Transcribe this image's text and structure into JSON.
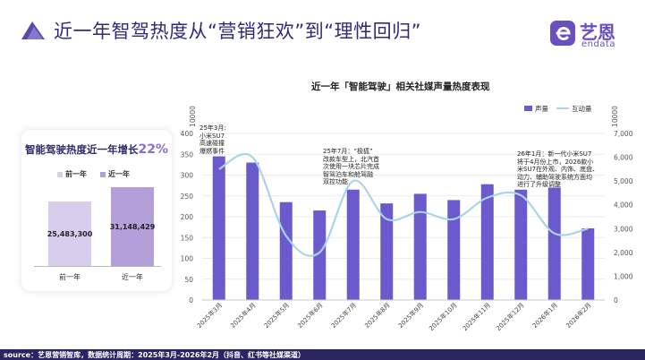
{
  "header": {
    "title": "近一年智驾热度从“营销狂欢”到“理性回归”"
  },
  "logo": {
    "cn": "艺恩",
    "en": "endata"
  },
  "summary": {
    "title_prefix": "智能驾驶热度近一年增长",
    "growth": "22%",
    "legend": [
      "前一年",
      "近一年"
    ],
    "bars": [
      {
        "label": "前一年",
        "value": 25483300,
        "display": "25,483,300",
        "color": "#d9cdee"
      },
      {
        "label": "近一年",
        "value": 31148429,
        "display": "31,148,429",
        "color": "#b3a0d9"
      }
    ]
  },
  "chart_data": {
    "type": "bar",
    "title": "近一年「智能驾驶」相关社媒声量热度表现",
    "categories": [
      "2025年3月",
      "2025年4月",
      "2025年5月",
      "2025年6月",
      "2025年7月",
      "2025年8月",
      "2025年9月",
      "2025年10月",
      "2025年11月",
      "2025年12月",
      "2026年1月",
      "2026年2月"
    ],
    "series": [
      {
        "name": "声量",
        "type": "bar",
        "axis": "left",
        "values": [
          345,
          330,
          235,
          215,
          265,
          232,
          255,
          240,
          278,
          265,
          270,
          172
        ],
        "color": "#6a5acd"
      },
      {
        "name": "互动量",
        "type": "line",
        "axis": "right",
        "smooth": true,
        "values": [
          5500,
          6000,
          2700,
          2000,
          5000,
          3400,
          3700,
          3400,
          4300,
          4400,
          2800,
          3000
        ],
        "color": "#a9d4ec"
      }
    ],
    "y_left": {
      "unit_label": "10000",
      "ylim": [
        0,
        400
      ],
      "ticks": [
        0,
        50,
        100,
        150,
        200,
        250,
        300,
        350,
        400
      ]
    },
    "y_right": {
      "unit_label": "10000",
      "ylim": [
        0,
        7000
      ],
      "ticks": [
        "0",
        "1,000",
        "2,000",
        "3,000",
        "4,000",
        "5,000",
        "6,000",
        "7,000"
      ]
    },
    "legend_position": "top-right",
    "annotations": [
      {
        "text": "25年3月:\n小米SU7\n高速碰撞\n爆燃事件"
      },
      {
        "text": "25年7月：“极狐”\n改款车型上，北汽首\n次使用一块芯片完成\n智驾泊车和舱驾融\n双控功能"
      },
      {
        "text": "26年1月：新一代小米SU7\n将于4月份上市，2026款小\n米SU7在外观、内饰、底盘、\n动力、辅助驾驶系统方面均\n进行了升级调整"
      }
    ]
  },
  "footer": {
    "text": "source：艺恩营销智库，数据统计周期：2025年3月-2026年2月（抖音、红书等社媒渠道）"
  },
  "colors": {
    "accent": "#6a5acd",
    "line": "#a9d4ec",
    "title": "#2f2a7a",
    "footer_bg": "#2a2560"
  }
}
